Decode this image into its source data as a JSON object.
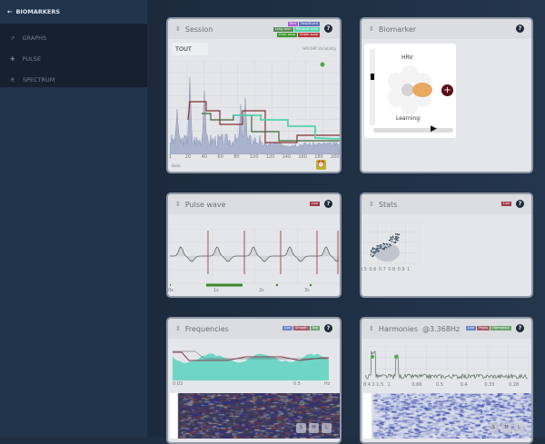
{
  "sidebar": {
    "back_label": "BIOMARKERS",
    "items": [
      {
        "label": "GRAPHS",
        "icon": "trend-icon"
      },
      {
        "label": "PULSE",
        "icon": "pulse-icon"
      },
      {
        "label": "SPECTRUM",
        "icon": "spectrum-icon"
      }
    ]
  },
  "session": {
    "title": "Session",
    "dropdown": "TOUT",
    "metric": "HRV/HR Variability",
    "legend": [
      [
        "Rest",
        "Rest/Event"
      ],
      [
        "Long term",
        "Personal zone"
      ],
      [
        "Over zone",
        "Under zone"
      ]
    ],
    "legend_colors": [
      [
        "#a55bd6",
        "#5b6fc0"
      ],
      [
        "#5a8a5a",
        "#52d3b0"
      ],
      [
        "#3a9a2a",
        "#b33a3a"
      ]
    ],
    "x_ticks": [
      "1",
      "20",
      "40",
      "60",
      "80",
      "100",
      "120",
      "140",
      "160",
      "180",
      "200"
    ],
    "footer": "Sess."
  },
  "biomarker": {
    "title": "Biomarker",
    "label_top": "HRV",
    "label_bottom": "Learning"
  },
  "pulse": {
    "title": "Pulse wave",
    "tag": "Live",
    "x_ticks": [
      "0s",
      "1s",
      "2s",
      "3s"
    ]
  },
  "stats": {
    "title": "Stats",
    "tag": "Live",
    "x_ticks": [
      "0.5",
      "0.6",
      "0.7",
      "0.8",
      "0.9",
      "1"
    ]
  },
  "frequencies": {
    "title": "Frequencies",
    "tags": [
      "Live",
      "Smooth",
      "Avg"
    ],
    "x_ticks": [
      "0.03",
      "0.5",
      "Hz"
    ],
    "zoom_buttons": [
      "S",
      "M",
      "L"
    ]
  },
  "harmonies": {
    "title": "Harmonies",
    "freq": "@3.368Hz",
    "tags": [
      "Live",
      "Peaks",
      "Harmonics"
    ],
    "x_ticks": [
      "8 4 2 1.5",
      "1",
      "0.66",
      "0.5",
      "0.4",
      "0.33",
      "0.28"
    ],
    "zoom_buttons": [
      "S",
      "M",
      "L"
    ]
  },
  "colors": {
    "accent": "#4fd1b5",
    "danger": "#a43a4a",
    "track": "#3a8a2a"
  }
}
